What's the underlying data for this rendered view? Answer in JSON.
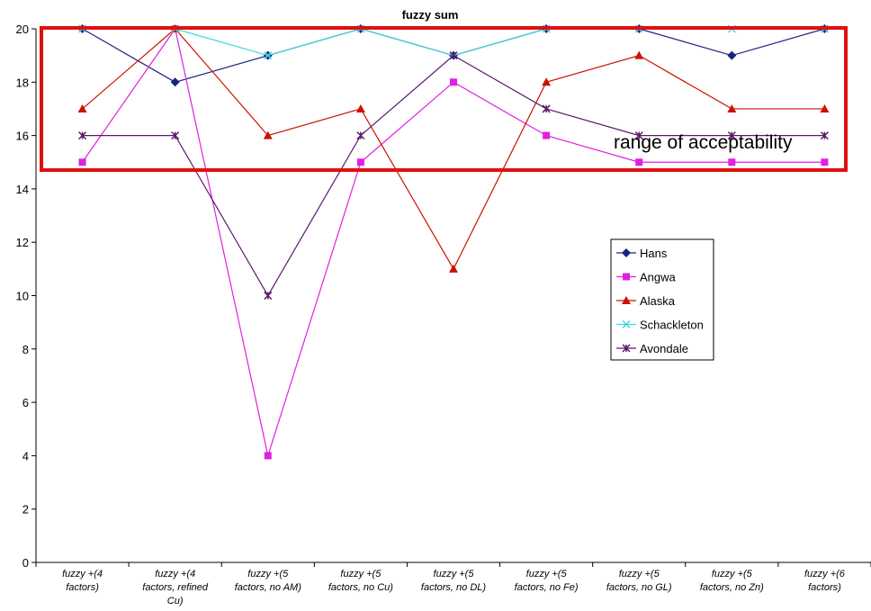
{
  "chart_data": {
    "type": "line",
    "title": "fuzzy sum",
    "xlabel": "",
    "ylabel": "",
    "ylim": [
      0,
      20
    ],
    "yticks": [
      0,
      2,
      4,
      6,
      8,
      10,
      12,
      14,
      16,
      18,
      20
    ],
    "grid": false,
    "legend_position": "right",
    "categories": [
      [
        "fuzzy +(4",
        "factors)"
      ],
      [
        "fuzzy +(4",
        "factors, refined",
        "Cu)"
      ],
      [
        "fuzzy +(5",
        "factors, no AM)"
      ],
      [
        "fuzzy +(5",
        "factors, no Cu)"
      ],
      [
        "fuzzy +(5",
        "factors, no DL)"
      ],
      [
        "fuzzy +(5",
        "factors, no Fe)"
      ],
      [
        "fuzzy +(5",
        "factors, no GL)"
      ],
      [
        "fuzzy +(5",
        "factors, no Zn)"
      ],
      [
        "fuzzy +(6",
        "factors)"
      ]
    ],
    "series": [
      {
        "name": "Hans",
        "color": "#1a237e",
        "marker": "diamond",
        "values": [
          20,
          18,
          19,
          20,
          19,
          20,
          20,
          19,
          20
        ]
      },
      {
        "name": "Angwa",
        "color": "#e020e0",
        "marker": "square",
        "values": [
          15,
          20,
          4,
          15,
          18,
          16,
          15,
          15,
          15
        ]
      },
      {
        "name": "Alaska",
        "color": "#cc1100",
        "marker": "triangle",
        "values": [
          17,
          20,
          16,
          17,
          11,
          18,
          19,
          17,
          17
        ]
      },
      {
        "name": "Schackleton",
        "color": "#40d8e0",
        "marker": "x",
        "values": [
          20,
          20,
          19,
          20,
          19,
          20,
          20,
          20,
          20
        ]
      },
      {
        "name": "Avondale",
        "color": "#5a1a6a",
        "marker": "star",
        "values": [
          16,
          16,
          10,
          16,
          19,
          17,
          16,
          16,
          16
        ]
      }
    ],
    "annotation": {
      "text": "range of acceptability",
      "box_color": "#e01010"
    }
  }
}
